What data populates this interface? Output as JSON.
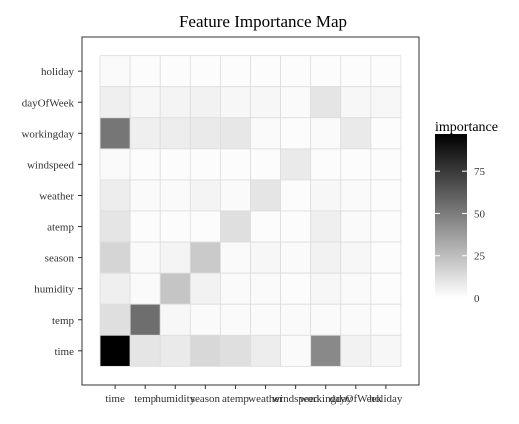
{
  "chart_data": {
    "type": "heatmap",
    "title": "Feature Importance Map",
    "x_categories": [
      "time",
      "temp",
      "humidity",
      "season",
      "atemp",
      "weather",
      "windspeed",
      "workingday",
      "dayOfWeek",
      "holiday"
    ],
    "y_categories": [
      "holiday",
      "dayOfWeek",
      "workingday",
      "windspeed",
      "weather",
      "atemp",
      "season",
      "humidity",
      "temp",
      "time"
    ],
    "values": [
      [
        2,
        1,
        1,
        1,
        1,
        1,
        1,
        1,
        1,
        1
      ],
      [
        6,
        3,
        4,
        5,
        3,
        3,
        2,
        10,
        3,
        3
      ],
      [
        52,
        6,
        7,
        8,
        9,
        2,
        1,
        2,
        8,
        1
      ],
      [
        2,
        1,
        1,
        1,
        1,
        1,
        8,
        1,
        1,
        1
      ],
      [
        7,
        2,
        2,
        4,
        2,
        10,
        1,
        3,
        2,
        1
      ],
      [
        10,
        1,
        1,
        1,
        12,
        1,
        1,
        6,
        2,
        1
      ],
      [
        16,
        2,
        4,
        20,
        2,
        3,
        2,
        5,
        3,
        1
      ],
      [
        6,
        2,
        22,
        5,
        2,
        2,
        1,
        3,
        2,
        1
      ],
      [
        12,
        55,
        3,
        2,
        2,
        2,
        2,
        2,
        2,
        1
      ],
      [
        97,
        10,
        8,
        15,
        12,
        7,
        2,
        45,
        5,
        3
      ]
    ],
    "legend": {
      "title": "importance",
      "ticks": [
        0,
        25,
        50,
        75
      ],
      "min": 0,
      "max": 97,
      "position": "right"
    },
    "colors": {
      "low": "#ffffff",
      "high": "#000000",
      "panel_border": "#333333",
      "tile_border": "#dddddd",
      "text": "#333333",
      "title": "#000000"
    }
  }
}
